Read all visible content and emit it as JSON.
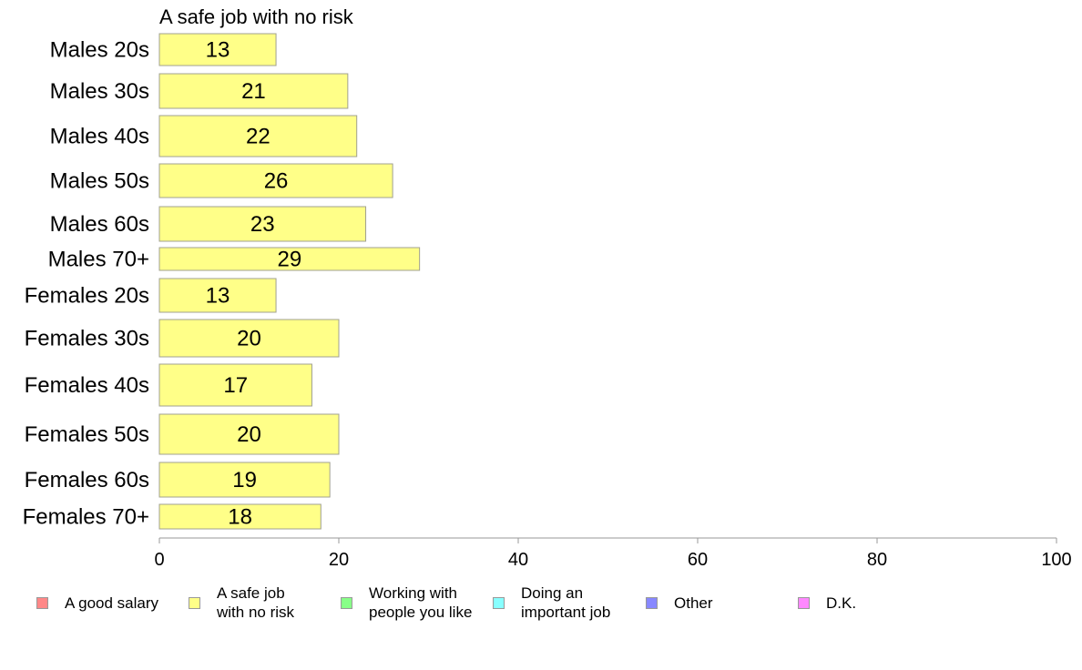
{
  "chart_data": {
    "type": "bar",
    "orientation": "horizontal",
    "title": "A safe job with no risk",
    "categories": [
      "Males 20s",
      "Males 30s",
      "Males 40s",
      "Males 50s",
      "Males 60s",
      "Males 70+",
      "Females 20s",
      "Females 30s",
      "Females 40s",
      "Females 50s",
      "Females 60s",
      "Females 70+"
    ],
    "values": [
      13,
      21,
      22,
      26,
      23,
      29,
      13,
      20,
      17,
      20,
      19,
      18
    ],
    "value_labels": [
      "13",
      "21",
      "22",
      "26",
      "23",
      "29",
      "13",
      "20",
      "17",
      "20",
      "19",
      "18"
    ],
    "xlim": [
      0,
      100
    ],
    "xticks": [
      0,
      20,
      40,
      60,
      80,
      100
    ],
    "xlabel": "",
    "ylabel": "",
    "grid": false,
    "bar_color": "#ffff88",
    "bar_edge_color": "#a0a090",
    "legend": {
      "placement": "bottom",
      "entries": [
        {
          "label": "A good salary",
          "color": "#ff8888"
        },
        {
          "label": "A safe job\nwith no risk",
          "color": "#ffff88"
        },
        {
          "label": "Working with\npeople you like",
          "color": "#88ff88"
        },
        {
          "label": "Doing an\nimportant job",
          "color": "#88ffff"
        },
        {
          "label": "Other",
          "color": "#8888ff"
        },
        {
          "label": "D.K.",
          "color": "#ff88ff"
        }
      ]
    }
  }
}
